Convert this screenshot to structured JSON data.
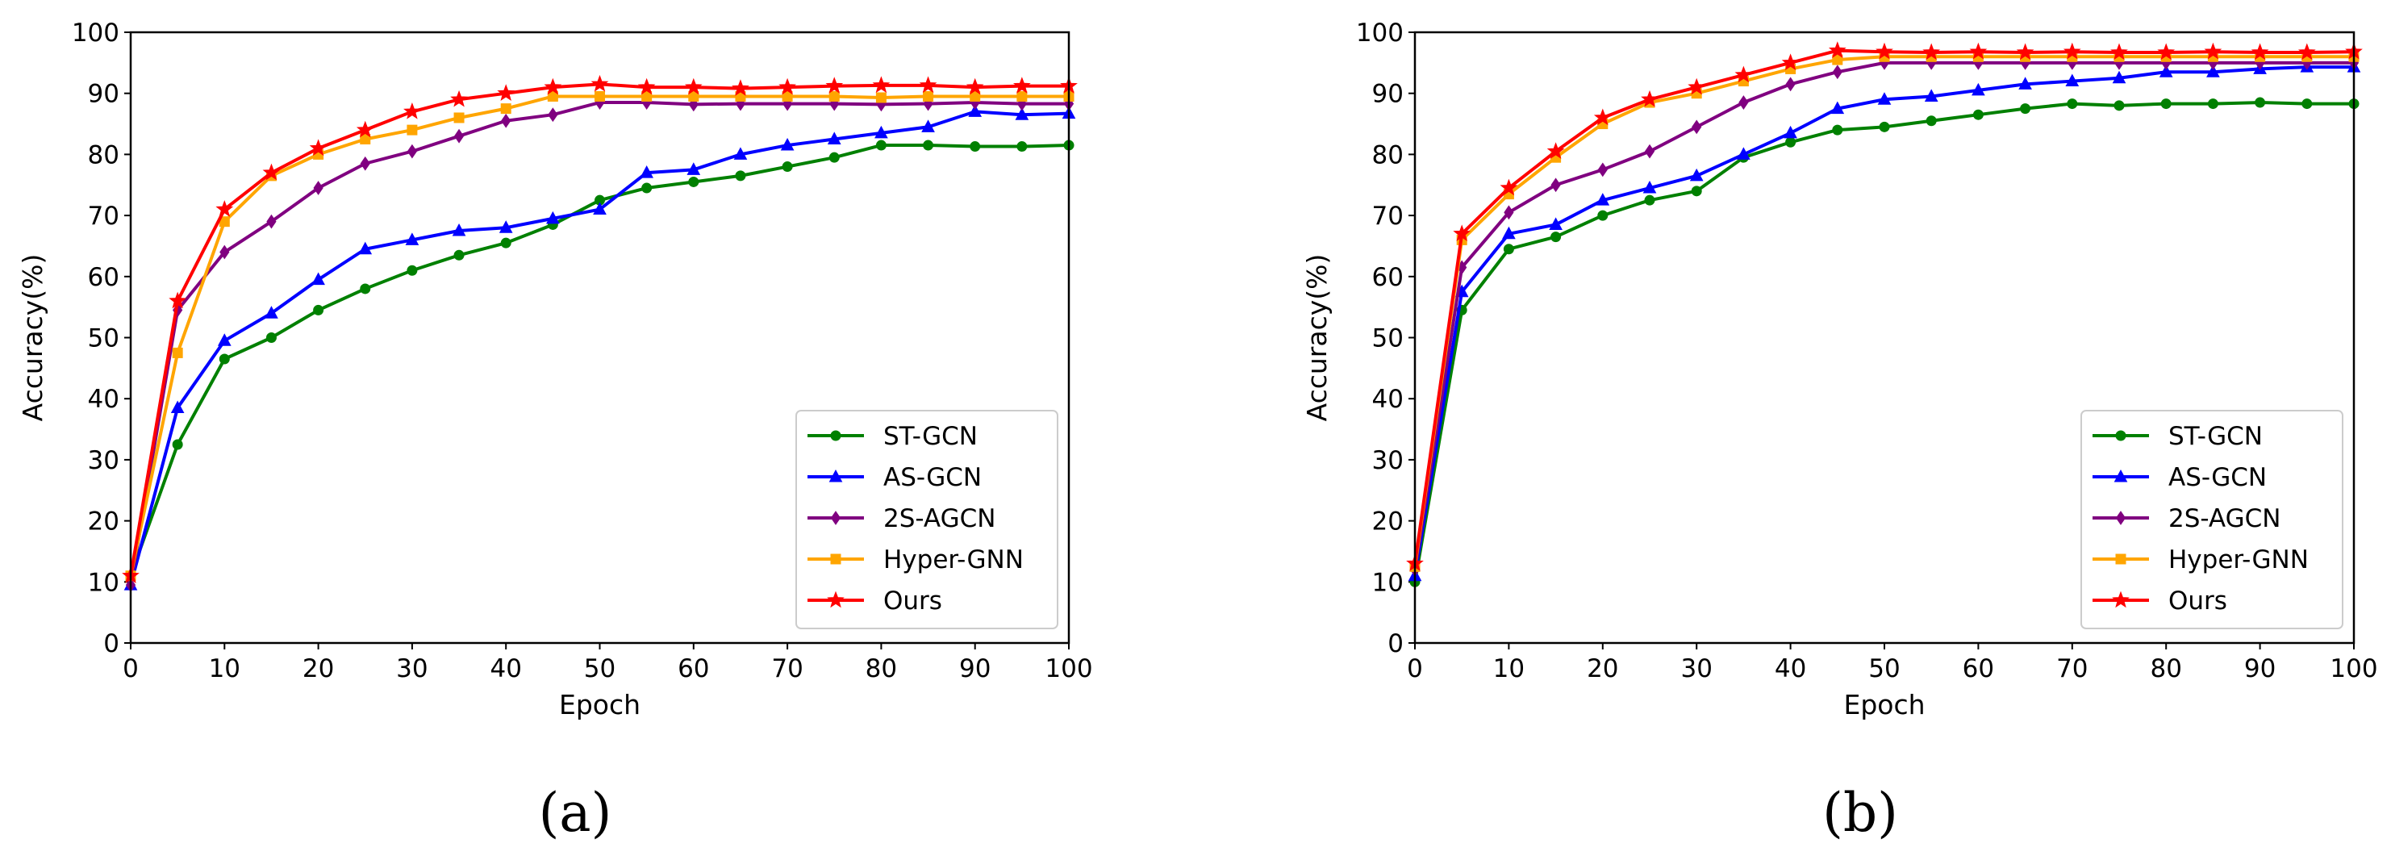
{
  "chart_data": [
    {
      "type": "line",
      "panel_label": "(a)",
      "xlabel": "Epoch",
      "ylabel": "Accuracy(%)",
      "xlim": [
        0,
        100
      ],
      "ylim": [
        0,
        100
      ],
      "xticks": [
        0,
        10,
        20,
        30,
        40,
        50,
        60,
        70,
        80,
        90,
        100
      ],
      "yticks": [
        0,
        10,
        20,
        30,
        40,
        50,
        60,
        70,
        80,
        90,
        100
      ],
      "legend_position": "lower-right",
      "x": [
        0,
        5,
        10,
        15,
        20,
        25,
        30,
        35,
        40,
        45,
        50,
        55,
        60,
        65,
        70,
        75,
        80,
        85,
        90,
        95,
        100
      ],
      "series": [
        {
          "name": "ST-GCN",
          "color": "#008000",
          "marker": "circle",
          "values": [
            11,
            32.5,
            46.5,
            50,
            54.5,
            58,
            61,
            63.5,
            65.5,
            68.5,
            72.5,
            74.5,
            75.5,
            76.5,
            78,
            79.5,
            81.5,
            81.5,
            81.3,
            81.3,
            81.5
          ]
        },
        {
          "name": "AS-GCN",
          "color": "#0000ff",
          "marker": "triangle",
          "values": [
            9.5,
            38.5,
            49.5,
            54,
            59.5,
            64.5,
            66,
            67.5,
            68,
            69.5,
            71,
            77,
            77.5,
            80,
            81.5,
            82.5,
            83.5,
            84.5,
            87,
            86.5,
            86.7
          ]
        },
        {
          "name": "2S-AGCN",
          "color": "#800080",
          "marker": "diamond",
          "values": [
            9.5,
            54.5,
            64,
            69,
            74.5,
            78.5,
            80.5,
            83,
            85.5,
            86.5,
            88.5,
            88.5,
            88.2,
            88.3,
            88.3,
            88.3,
            88.2,
            88.3,
            88.5,
            88.3,
            88.3
          ]
        },
        {
          "name": "Hyper-GNN",
          "color": "#ffa500",
          "marker": "square",
          "values": [
            11,
            47.5,
            69,
            76.5,
            80,
            82.5,
            84,
            86,
            87.5,
            89.5,
            89.5,
            89.5,
            89.5,
            89.5,
            89.5,
            89.5,
            89.3,
            89.5,
            89.5,
            89.5,
            89.5
          ]
        },
        {
          "name": "Ours",
          "color": "#ff0000",
          "marker": "star",
          "values": [
            11,
            56,
            71,
            77,
            81,
            84,
            87,
            89,
            90,
            91,
            91.5,
            91,
            91,
            90.8,
            91,
            91.2,
            91.3,
            91.3,
            91,
            91.2,
            91.2
          ]
        }
      ]
    },
    {
      "type": "line",
      "panel_label": "(b)",
      "xlabel": "Epoch",
      "ylabel": "Accuracy(%)",
      "xlim": [
        0,
        100
      ],
      "ylim": [
        0,
        100
      ],
      "xticks": [
        0,
        10,
        20,
        30,
        40,
        50,
        60,
        70,
        80,
        90,
        100
      ],
      "yticks": [
        0,
        10,
        20,
        30,
        40,
        50,
        60,
        70,
        80,
        90,
        100
      ],
      "legend_position": "lower-right",
      "x": [
        0,
        5,
        10,
        15,
        20,
        25,
        30,
        35,
        40,
        45,
        50,
        55,
        60,
        65,
        70,
        75,
        80,
        85,
        90,
        95,
        100
      ],
      "series": [
        {
          "name": "ST-GCN",
          "color": "#008000",
          "marker": "circle",
          "values": [
            10,
            54.5,
            64.5,
            66.5,
            70,
            72.5,
            74,
            79.5,
            82,
            84,
            84.5,
            85.5,
            86.5,
            87.5,
            88.3,
            88,
            88.3,
            88.3,
            88.5,
            88.3,
            88.3
          ]
        },
        {
          "name": "AS-GCN",
          "color": "#0000ff",
          "marker": "triangle",
          "values": [
            11,
            57.5,
            67,
            68.5,
            72.5,
            74.5,
            76.5,
            80,
            83.5,
            87.5,
            89,
            89.5,
            90.5,
            91.5,
            92,
            92.5,
            93.5,
            93.5,
            94,
            94.3,
            94.3
          ]
        },
        {
          "name": "2S-AGCN",
          "color": "#800080",
          "marker": "diamond",
          "values": [
            12,
            61.5,
            70.5,
            75,
            77.5,
            80.5,
            84.5,
            88.5,
            91.5,
            93.5,
            95,
            95,
            95,
            95,
            95,
            95,
            95,
            95,
            95,
            95,
            95
          ]
        },
        {
          "name": "Hyper-GNN",
          "color": "#ffa500",
          "marker": "square",
          "values": [
            12.5,
            66,
            73.5,
            79.5,
            85,
            88.5,
            90,
            92,
            94,
            95.5,
            96,
            96,
            96,
            96,
            96,
            96,
            96,
            96,
            96,
            96,
            96
          ]
        },
        {
          "name": "Ours",
          "color": "#ff0000",
          "marker": "star",
          "values": [
            13,
            67,
            74.5,
            80.5,
            86,
            89,
            91,
            93,
            95,
            97,
            96.8,
            96.7,
            96.8,
            96.7,
            96.8,
            96.7,
            96.7,
            96.8,
            96.7,
            96.7,
            96.8
          ]
        }
      ]
    }
  ]
}
